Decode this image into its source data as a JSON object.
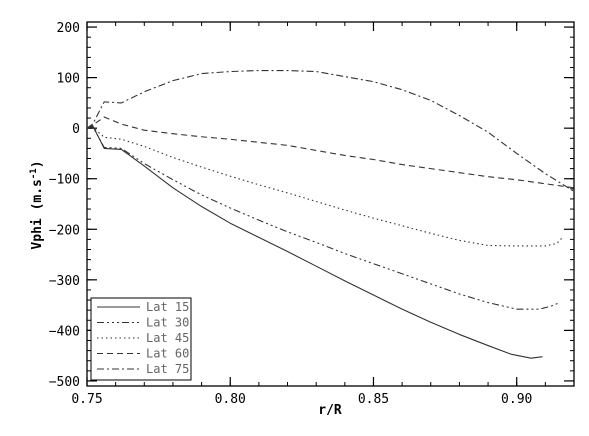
{
  "chart_data": {
    "type": "line",
    "xlabel": "r/R",
    "ylabel_main": "Vphi (m.s",
    "ylabel_sup": "-1",
    "ylabel_close": ")",
    "xlim": [
      0.75,
      0.92
    ],
    "ylim": [
      -510,
      210
    ],
    "x_ticks": [
      0.75,
      0.8,
      0.85,
      0.9
    ],
    "x_tick_labels": [
      "0.75",
      "0.80",
      "0.85",
      "0.90"
    ],
    "y_ticks": [
      200,
      100,
      0,
      -100,
      -200,
      -300,
      -400,
      -500
    ],
    "y_tick_labels": [
      "200",
      "100",
      "0",
      "−100",
      "−200",
      "−300",
      "−400",
      "−500"
    ],
    "grid": false,
    "legend_position": "bottom-left",
    "series": [
      {
        "name": "Lat 15",
        "dash": "",
        "color": "#333333",
        "points": [
          [
            0.75,
            0
          ],
          [
            0.752,
            5
          ],
          [
            0.756,
            -40
          ],
          [
            0.762,
            -42
          ],
          [
            0.77,
            -75
          ],
          [
            0.78,
            -118
          ],
          [
            0.79,
            -155
          ],
          [
            0.8,
            -188
          ],
          [
            0.81,
            -216
          ],
          [
            0.82,
            -244
          ],
          [
            0.83,
            -273
          ],
          [
            0.84,
            -302
          ],
          [
            0.85,
            -330
          ],
          [
            0.86,
            -358
          ],
          [
            0.87,
            -384
          ],
          [
            0.88,
            -408
          ],
          [
            0.89,
            -430
          ],
          [
            0.898,
            -447
          ],
          [
            0.905,
            -455
          ],
          [
            0.909,
            -452
          ]
        ]
      },
      {
        "name": "Lat 30",
        "dash": "7,3,2,3,2,3,2,3",
        "color": "#333333",
        "points": [
          [
            0.75,
            0
          ],
          [
            0.752,
            3
          ],
          [
            0.756,
            -38
          ],
          [
            0.762,
            -40
          ],
          [
            0.77,
            -70
          ],
          [
            0.78,
            -102
          ],
          [
            0.79,
            -132
          ],
          [
            0.8,
            -158
          ],
          [
            0.81,
            -182
          ],
          [
            0.82,
            -205
          ],
          [
            0.83,
            -226
          ],
          [
            0.84,
            -248
          ],
          [
            0.85,
            -268
          ],
          [
            0.86,
            -288
          ],
          [
            0.87,
            -308
          ],
          [
            0.88,
            -328
          ],
          [
            0.89,
            -345
          ],
          [
            0.9,
            -358
          ],
          [
            0.908,
            -358
          ],
          [
            0.912,
            -352
          ],
          [
            0.915,
            -345
          ]
        ]
      },
      {
        "name": "Lat 45",
        "dash": "1.5,3",
        "color": "#333333",
        "points": [
          [
            0.75,
            0
          ],
          [
            0.752,
            2
          ],
          [
            0.756,
            -18
          ],
          [
            0.762,
            -22
          ],
          [
            0.77,
            -36
          ],
          [
            0.78,
            -58
          ],
          [
            0.79,
            -77
          ],
          [
            0.8,
            -95
          ],
          [
            0.81,
            -112
          ],
          [
            0.82,
            -128
          ],
          [
            0.83,
            -145
          ],
          [
            0.84,
            -162
          ],
          [
            0.85,
            -178
          ],
          [
            0.86,
            -193
          ],
          [
            0.87,
            -208
          ],
          [
            0.88,
            -222
          ],
          [
            0.89,
            -232
          ],
          [
            0.9,
            -233
          ],
          [
            0.91,
            -233
          ],
          [
            0.914,
            -228
          ],
          [
            0.916,
            -216
          ]
        ]
      },
      {
        "name": "Lat 60",
        "dash": "6,4",
        "color": "#333333",
        "points": [
          [
            0.75,
            0
          ],
          [
            0.752,
            6
          ],
          [
            0.756,
            22
          ],
          [
            0.762,
            8
          ],
          [
            0.77,
            -4
          ],
          [
            0.78,
            -11
          ],
          [
            0.79,
            -17
          ],
          [
            0.8,
            -22
          ],
          [
            0.81,
            -28
          ],
          [
            0.82,
            -34
          ],
          [
            0.83,
            -44
          ],
          [
            0.84,
            -54
          ],
          [
            0.85,
            -62
          ],
          [
            0.86,
            -72
          ],
          [
            0.87,
            -80
          ],
          [
            0.88,
            -88
          ],
          [
            0.89,
            -96
          ],
          [
            0.9,
            -102
          ],
          [
            0.91,
            -110
          ],
          [
            0.92,
            -118
          ]
        ]
      },
      {
        "name": "Lat 75",
        "dash": "7,3,2,3",
        "color": "#333333",
        "points": [
          [
            0.75,
            0
          ],
          [
            0.752,
            8
          ],
          [
            0.756,
            52
          ],
          [
            0.762,
            50
          ],
          [
            0.77,
            72
          ],
          [
            0.78,
            94
          ],
          [
            0.79,
            108
          ],
          [
            0.8,
            112
          ],
          [
            0.81,
            114
          ],
          [
            0.82,
            114
          ],
          [
            0.83,
            112
          ],
          [
            0.84,
            102
          ],
          [
            0.85,
            92
          ],
          [
            0.86,
            76
          ],
          [
            0.87,
            55
          ],
          [
            0.88,
            25
          ],
          [
            0.89,
            -8
          ],
          [
            0.9,
            -50
          ],
          [
            0.91,
            -90
          ],
          [
            0.92,
            -125
          ]
        ]
      }
    ]
  }
}
